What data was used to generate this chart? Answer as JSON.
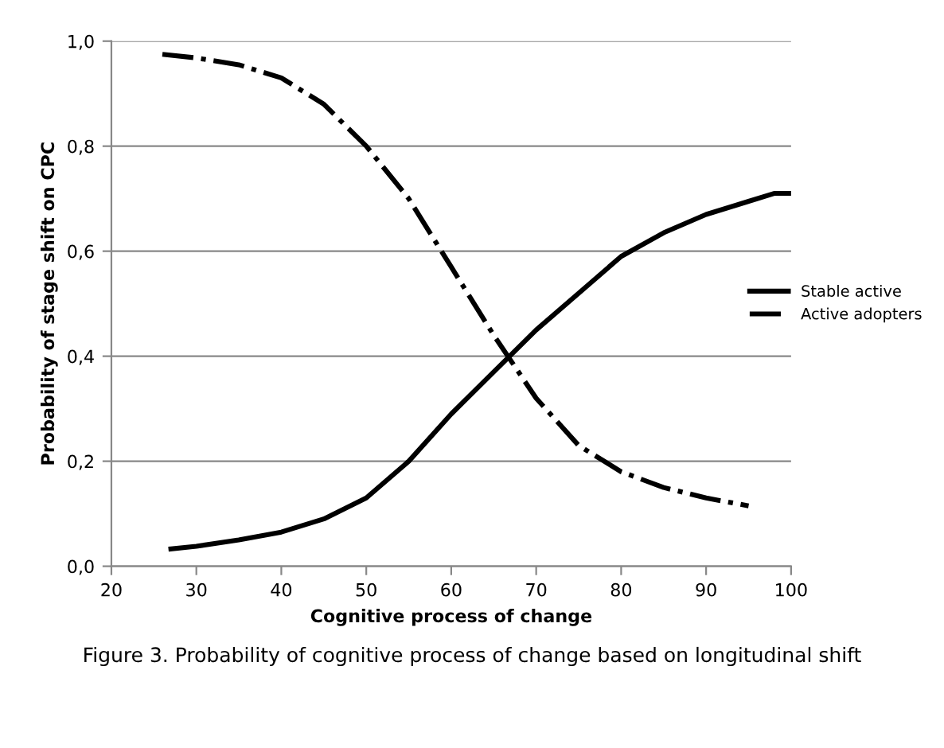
{
  "chart_data": {
    "type": "line",
    "xlabel": "Cognitive process of change",
    "ylabel": "Probability of stage shift on CPC",
    "annotations": [
      "Figure 3. Probability of cognitive process of change based on longitudinal shift"
    ],
    "series": [
      {
        "name": "Stable active",
        "color": "#000000",
        "line_style": "solid",
        "x": [
          27,
          30,
          35,
          40,
          45,
          50,
          55,
          60,
          65,
          70,
          75,
          80,
          85,
          90,
          95,
          98,
          100
        ],
        "values": [
          0.033,
          0.038,
          0.05,
          0.065,
          0.09,
          0.13,
          0.2,
          0.29,
          0.37,
          0.45,
          0.52,
          0.59,
          0.635,
          0.67,
          0.695,
          0.71,
          0.71
        ]
      },
      {
        "name": "Active adopters",
        "color": "#000000",
        "line_style": "dashdot",
        "x": [
          26,
          30,
          35,
          40,
          45,
          50,
          55,
          60,
          65,
          70,
          75,
          80,
          85,
          90,
          95
        ],
        "values": [
          0.975,
          0.968,
          0.955,
          0.93,
          0.88,
          0.8,
          0.7,
          0.57,
          0.44,
          0.32,
          0.23,
          0.18,
          0.15,
          0.13,
          0.115
        ]
      }
    ],
    "xlim": [
      20,
      100
    ],
    "xticks": [
      20,
      30,
      40,
      50,
      60,
      70,
      80,
      90,
      100
    ],
    "ylim": [
      0,
      1
    ],
    "yticks": [
      {
        "value": 0,
        "label": "0,0"
      },
      {
        "value": 0.2,
        "label": "0,2"
      },
      {
        "value": 0.4,
        "label": "0,4"
      },
      {
        "value": 0.6,
        "label": "0,6"
      },
      {
        "value": 0.8,
        "label": "0,8"
      },
      {
        "value": 1,
        "label": "1,0"
      }
    ],
    "grid": "y",
    "legend": "right",
    "marker": "none"
  }
}
